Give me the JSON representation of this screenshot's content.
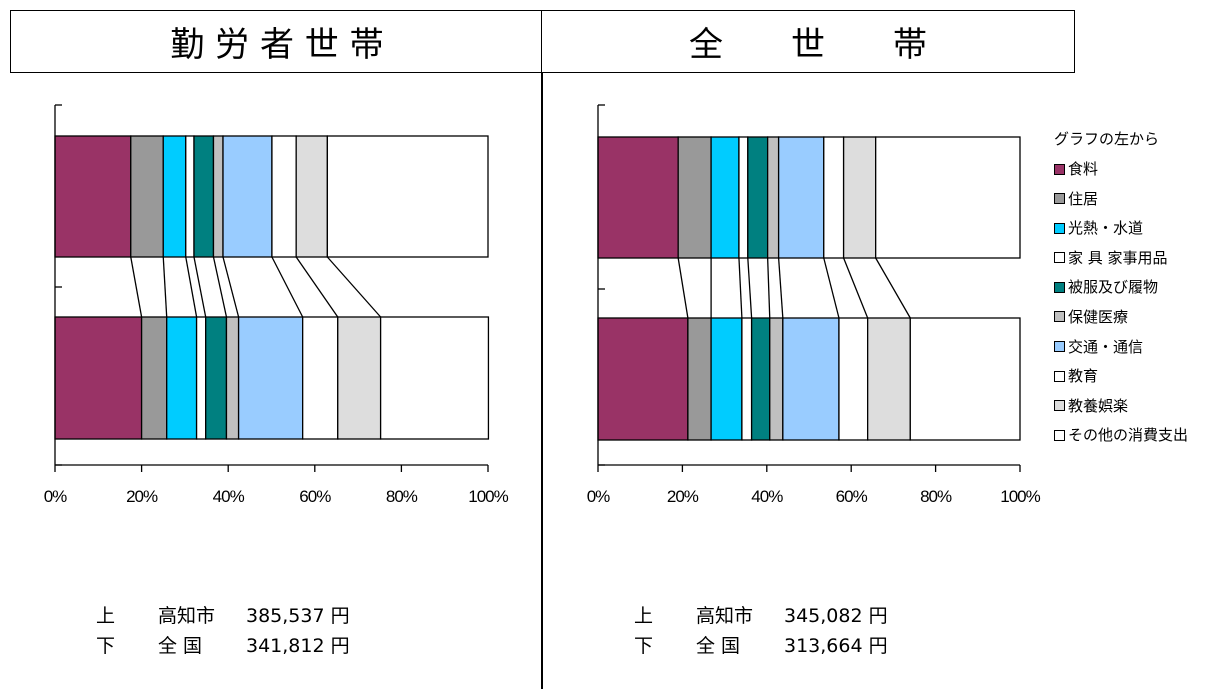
{
  "headers": {
    "left": "勤 労 者 世 帯",
    "right": "全　　世　　帯"
  },
  "legend": {
    "title": "グラフの左から",
    "items": [
      {
        "label": "食料",
        "color": "#993366"
      },
      {
        "label": "住居",
        "color": "#999999"
      },
      {
        "label": "光熱・水道",
        "color": "#00CCFF"
      },
      {
        "label": "家 具 家事用品",
        "color": "#FFFFFF"
      },
      {
        "label": "被服及び履物",
        "color": "#008080"
      },
      {
        "label": "保健医療",
        "color": "#C0C0C0"
      },
      {
        "label": "交通・通信",
        "color": "#99CCFF"
      },
      {
        "label": "教育",
        "color": "#FFFFFF"
      },
      {
        "label": "教養娯楽",
        "color": "#DDDDDD"
      },
      {
        "label": "その他の消費支出",
        "color": "#FFFFFF"
      }
    ]
  },
  "chart_data": [
    {
      "type": "bar",
      "orientation": "horizontal",
      "stacked": true,
      "title": "勤 労 者 世 帯",
      "xlim": [
        0,
        100
      ],
      "xticks": [
        "0%",
        "20%",
        "40%",
        "60%",
        "80%",
        "100%"
      ],
      "categories": [
        "上",
        "下"
      ],
      "series": [
        {
          "name": "食料",
          "values": [
            17.5,
            20.0
          ]
        },
        {
          "name": "住居",
          "values": [
            7.5,
            5.8
          ]
        },
        {
          "name": "光熱・水道",
          "values": [
            5.2,
            6.9
          ]
        },
        {
          "name": "家 具 家事用品",
          "values": [
            1.9,
            2.1
          ]
        },
        {
          "name": "被服及び履物",
          "values": [
            4.5,
            4.8
          ]
        },
        {
          "name": "保健医療",
          "values": [
            2.2,
            2.8
          ]
        },
        {
          "name": "交通・通信",
          "values": [
            11.3,
            14.8
          ]
        },
        {
          "name": "教育",
          "values": [
            5.6,
            8.1
          ]
        },
        {
          "name": "教養娯楽",
          "values": [
            7.2,
            9.9
          ]
        },
        {
          "name": "その他の消費支出",
          "values": [
            37.1,
            24.9
          ]
        }
      ]
    },
    {
      "type": "bar",
      "orientation": "horizontal",
      "stacked": true,
      "title": "全　　世　　帯",
      "xlim": [
        0,
        100
      ],
      "xticks": [
        "0%",
        "20%",
        "40%",
        "60%",
        "80%",
        "100%"
      ],
      "categories": [
        "上",
        "下"
      ],
      "series": [
        {
          "name": "食料",
          "values": [
            19.0,
            21.3
          ]
        },
        {
          "name": "住居",
          "values": [
            7.8,
            5.5
          ]
        },
        {
          "name": "光熱・水道",
          "values": [
            6.6,
            7.3
          ]
        },
        {
          "name": "家 具 家事用品",
          "values": [
            2.1,
            2.3
          ]
        },
        {
          "name": "被服及び履物",
          "values": [
            4.7,
            4.3
          ]
        },
        {
          "name": "保健医療",
          "values": [
            2.6,
            3.1
          ]
        },
        {
          "name": "交通・通信",
          "values": [
            10.7,
            13.3
          ]
        },
        {
          "name": "教育",
          "values": [
            4.7,
            6.8
          ]
        },
        {
          "name": "教養娯楽",
          "values": [
            7.6,
            10.1
          ]
        },
        {
          "name": "その他の消費支出",
          "values": [
            34.2,
            26.0
          ]
        }
      ]
    }
  ],
  "totals": {
    "left": [
      {
        "pos": "上",
        "place": "高知市",
        "amount": "385,537 円"
      },
      {
        "pos": "下",
        "place": "全 国",
        "amount": "341,812 円"
      }
    ],
    "right": [
      {
        "pos": "上",
        "place": "高知市",
        "amount": "345,082 円"
      },
      {
        "pos": "下",
        "place": "全 国",
        "amount": "313,664 円"
      }
    ]
  }
}
